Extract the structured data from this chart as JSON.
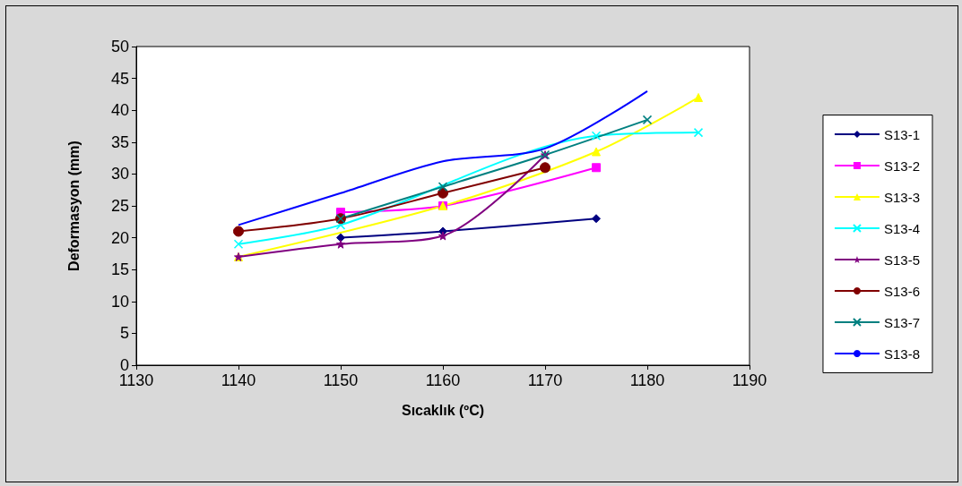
{
  "chart_data": {
    "type": "line",
    "xlabel": "Sıcaklık (ºC)",
    "ylabel": "Deformasyon (mm)",
    "xlim": [
      1130,
      1190
    ],
    "xticks": [
      1130,
      1140,
      1150,
      1160,
      1170,
      1180,
      1190
    ],
    "ylim": [
      0,
      50
    ],
    "yticks": [
      0,
      5,
      10,
      15,
      20,
      25,
      30,
      35,
      40,
      45,
      50
    ],
    "grid": false,
    "legend": "right",
    "line_style": "solid",
    "series": [
      {
        "name": "S13-1",
        "color": "#000080",
        "marker": "diamond",
        "x": [
          1150,
          1160,
          1175
        ],
        "values": [
          20,
          21,
          23
        ]
      },
      {
        "name": "S13-2",
        "color": "#ff00ff",
        "marker": "square",
        "x": [
          1150,
          1160,
          1175
        ],
        "values": [
          24,
          25,
          31
        ]
      },
      {
        "name": "S13-3",
        "color": "#ffff00",
        "marker": "triangle",
        "x": [
          1140,
          1160,
          1175,
          1185
        ],
        "values": [
          17,
          25,
          33.5,
          42
        ]
      },
      {
        "name": "S13-4",
        "color": "#00ffff",
        "marker": "cross",
        "x": [
          1140,
          1150,
          1175,
          1185
        ],
        "values": [
          19,
          22,
          36,
          36.5
        ]
      },
      {
        "name": "S13-5",
        "color": "#800080",
        "marker": "star",
        "x": [
          1140,
          1150,
          1160,
          1170
        ],
        "values": [
          17,
          19,
          20.3,
          33
        ]
      },
      {
        "name": "S13-6",
        "color": "#800000",
        "marker": "circle",
        "x": [
          1140,
          1150,
          1160,
          1170
        ],
        "values": [
          21,
          23,
          27,
          31
        ]
      },
      {
        "name": "S13-7",
        "color": "#008080",
        "marker": "cross",
        "x": [
          1150,
          1160,
          1170,
          1180
        ],
        "values": [
          23,
          28,
          33,
          38.5
        ]
      },
      {
        "name": "S13-8",
        "color": "#0000ff",
        "marker": "none",
        "x": [
          1140,
          1150,
          1160,
          1170,
          1180
        ],
        "values": [
          22,
          27,
          32,
          34,
          43
        ]
      }
    ]
  }
}
